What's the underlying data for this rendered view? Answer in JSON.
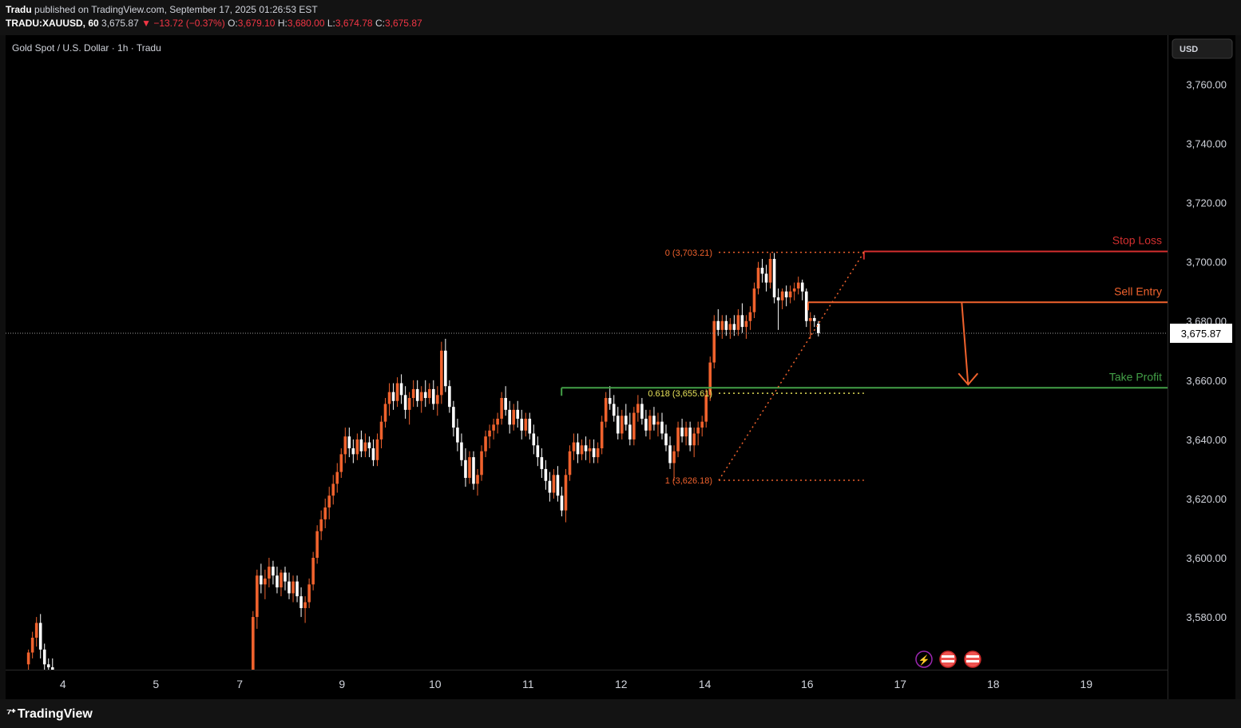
{
  "header": {
    "line1": "Tradu published on TradingView.com, September 17, 2025 01:26:53 EST",
    "publisher": "Tradu",
    "symbol": "TRADU:XAUUSD, 60",
    "last": "3,675.87",
    "change": "−13.72 (−0.37%)",
    "open_label": "O:",
    "open": "3,679.10",
    "high_label": "H:",
    "high": "3,680.00",
    "low_label": "L:",
    "low": "3,674.78",
    "close_label": "C:",
    "close": "3,675.87"
  },
  "chart_title": "Gold Spot / U.S. Dollar · 1h · Tradu",
  "currency_button": "USD",
  "footer": {
    "brand": "TradingView"
  },
  "colors": {
    "background": "#000000",
    "up_candle": "#f0622d",
    "down_candle": "#ffffff",
    "stop_loss": "#d32f2f",
    "sell_entry": "#f0622d",
    "take_profit": "#43a047",
    "fib": "#f0622d",
    "fib_618": "#e8e35a"
  },
  "chart_data": {
    "type": "candlestick",
    "title": "Gold Spot / U.S. Dollar · 1h · Tradu",
    "y_axis": {
      "ticks": [
        3580,
        3600,
        3620,
        3640,
        3660,
        3680,
        3700,
        3720,
        3740,
        3760
      ],
      "tick_labels": [
        "3,580.00",
        "3,600.00",
        "3,620.00",
        "3,640.00",
        "3,660.00",
        "3,680.00",
        "3,700.00",
        "3,720.00",
        "3,740.00",
        "3,760.00"
      ],
      "range": [
        3562.2,
        3776.6
      ]
    },
    "x_axis": {
      "tick_labels": [
        "4",
        "5",
        "7",
        "9",
        "10",
        "11",
        "12",
        "14",
        "16",
        "17",
        "18",
        "19"
      ],
      "tick_positions": [
        3.5,
        4.5,
        5.4,
        6.5,
        7.5,
        8.5,
        9.5,
        10.4,
        11.5,
        12.5,
        13.5,
        14.5
      ]
    },
    "current_price": {
      "value": 3675.87,
      "label": "3,675.87"
    },
    "levels": [
      {
        "name": "Stop Loss",
        "value": 3703.51,
        "label": "3,703.51",
        "from_x": 12.11
      },
      {
        "name": "Sell Entry",
        "value": 3686.33,
        "label": "3,686.33",
        "from_x": 11.51
      },
      {
        "name": "Take Profit",
        "value": 3657.45,
        "label": "3,657.45",
        "from_x": 8.86
      }
    ],
    "fibonacci": {
      "x_start": 10.55,
      "x_end": 12.11,
      "levels": [
        {
          "ratio": "0",
          "value": 3703.21,
          "label": "0 (3,703.21)"
        },
        {
          "ratio": "0.618",
          "value": 3655.61,
          "label": "0.618 (3,655.61)"
        },
        {
          "ratio": "1",
          "value": 3626.18,
          "label": "1 (3,626.18)"
        }
      ]
    },
    "projection_arrow": {
      "x": 13.23,
      "from": 3686.33,
      "to": 3657.45
    },
    "candles_x_start": 3.13,
    "candles_x_step": 0.0431,
    "candles": [
      [
        3564,
        3569,
        3561,
        3568
      ],
      [
        3568,
        3575,
        3566,
        3573
      ],
      [
        3573,
        3580,
        3570,
        3578
      ],
      [
        3578,
        3581,
        3566,
        3569
      ],
      [
        3569,
        3571,
        3561,
        3564
      ],
      [
        3564,
        3566,
        3559,
        3563
      ],
      [
        3563,
        3566,
        3556,
        3558
      ],
      [
        3558,
        3560,
        3550,
        3552
      ],
      [
        3552,
        3555,
        3548,
        3553
      ],
      [
        3553,
        3556,
        3550,
        3551
      ],
      [
        3551,
        3554,
        3548,
        3553
      ],
      [
        3553,
        3556,
        3550,
        3552
      ],
      [
        3552,
        3555,
        3549,
        3554
      ],
      [
        3554,
        3557,
        3551,
        3553
      ],
      [
        3553,
        3556,
        3550,
        3555
      ],
      [
        3555,
        3557,
        3552,
        3554
      ],
      [
        3554,
        3556,
        3551,
        3553
      ],
      [
        3553,
        3556,
        3550,
        3555
      ],
      [
        3555,
        3557,
        3552,
        3554
      ],
      [
        3554,
        3557,
        3551,
        3556
      ],
      [
        3556,
        3558,
        3553,
        3555
      ],
      [
        3555,
        3557,
        3552,
        3554
      ],
      [
        3554,
        3556,
        3551,
        3553
      ],
      [
        3553,
        3556,
        3550,
        3555
      ],
      [
        3555,
        3557,
        3552,
        3554
      ],
      [
        3554,
        3557,
        3551,
        3556
      ],
      [
        3556,
        3558,
        3553,
        3555
      ],
      [
        3555,
        3558,
        3552,
        3557
      ],
      [
        3557,
        3559,
        3554,
        3556
      ],
      [
        3556,
        3558,
        3553,
        3555
      ],
      [
        3555,
        3557,
        3552,
        3554
      ],
      [
        3554,
        3556,
        3551,
        3553
      ],
      [
        3553,
        3556,
        3550,
        3555
      ],
      [
        3555,
        3557,
        3552,
        3554
      ],
      [
        3554,
        3557,
        3551,
        3556
      ],
      [
        3556,
        3558,
        3553,
        3555
      ],
      [
        3555,
        3557,
        3552,
        3554
      ],
      [
        3554,
        3556,
        3551,
        3553
      ],
      [
        3553,
        3555,
        3550,
        3554
      ],
      [
        3554,
        3556,
        3551,
        3553
      ],
      [
        3553,
        3556,
        3550,
        3555
      ],
      [
        3555,
        3557,
        3552,
        3554
      ],
      [
        3554,
        3556,
        3551,
        3553
      ],
      [
        3553,
        3556,
        3550,
        3555
      ],
      [
        3555,
        3557,
        3552,
        3554
      ],
      [
        3554,
        3557,
        3551,
        3556
      ],
      [
        3556,
        3558,
        3553,
        3555
      ],
      [
        3555,
        3557,
        3552,
        3554
      ],
      [
        3554,
        3556,
        3551,
        3553
      ],
      [
        3553,
        3556,
        3550,
        3555
      ],
      [
        3555,
        3557,
        3552,
        3554
      ],
      [
        3554,
        3556,
        3551,
        3553
      ],
      [
        3553,
        3556,
        3550,
        3555
      ],
      [
        3555,
        3557,
        3552,
        3554
      ],
      [
        3554,
        3556,
        3551,
        3553
      ],
      [
        3553,
        3562,
        3550,
        3561
      ],
      [
        3561,
        3582,
        3560,
        3580
      ],
      [
        3580,
        3596,
        3576,
        3594
      ],
      [
        3594,
        3598,
        3588,
        3591
      ],
      [
        3591,
        3596,
        3586,
        3593
      ],
      [
        3593,
        3600,
        3590,
        3597
      ],
      [
        3597,
        3599,
        3591,
        3594
      ],
      [
        3594,
        3597,
        3588,
        3590
      ],
      [
        3590,
        3596,
        3587,
        3595
      ],
      [
        3595,
        3597,
        3589,
        3592
      ],
      [
        3592,
        3595,
        3586,
        3588
      ],
      [
        3588,
        3594,
        3585,
        3592
      ],
      [
        3592,
        3594,
        3585,
        3587
      ],
      [
        3587,
        3590,
        3580,
        3583
      ],
      [
        3583,
        3587,
        3578,
        3585
      ],
      [
        3585,
        3593,
        3583,
        3591
      ],
      [
        3591,
        3602,
        3589,
        3600
      ],
      [
        3600,
        3611,
        3598,
        3609
      ],
      [
        3609,
        3616,
        3606,
        3613
      ],
      [
        3613,
        3620,
        3610,
        3617
      ],
      [
        3617,
        3624,
        3613,
        3621
      ],
      [
        3621,
        3628,
        3618,
        3625
      ],
      [
        3625,
        3632,
        3622,
        3629
      ],
      [
        3629,
        3637,
        3627,
        3635
      ],
      [
        3635,
        3644,
        3632,
        3641
      ],
      [
        3641,
        3644,
        3634,
        3637
      ],
      [
        3637,
        3640,
        3632,
        3635
      ],
      [
        3635,
        3642,
        3633,
        3640
      ],
      [
        3640,
        3643,
        3634,
        3636
      ],
      [
        3636,
        3642,
        3634,
        3639
      ],
      [
        3639,
        3641,
        3634,
        3637
      ],
      [
        3637,
        3640,
        3631,
        3633
      ],
      [
        3633,
        3642,
        3631,
        3640
      ],
      [
        3640,
        3648,
        3637,
        3646
      ],
      [
        3646,
        3654,
        3644,
        3652
      ],
      [
        3652,
        3659,
        3648,
        3656
      ],
      [
        3656,
        3659,
        3650,
        3653
      ],
      [
        3653,
        3661,
        3651,
        3659
      ],
      [
        3659,
        3662,
        3652,
        3655
      ],
      [
        3655,
        3658,
        3647,
        3650
      ],
      [
        3650,
        3656,
        3645,
        3654
      ],
      [
        3654,
        3660,
        3651,
        3657
      ],
      [
        3657,
        3660,
        3651,
        3653
      ],
      [
        3653,
        3658,
        3649,
        3656
      ],
      [
        3656,
        3660,
        3651,
        3654
      ],
      [
        3654,
        3659,
        3652,
        3657
      ],
      [
        3657,
        3660,
        3650,
        3652
      ],
      [
        3652,
        3658,
        3648,
        3655
      ],
      [
        3655,
        3673,
        3652,
        3670
      ],
      [
        3670,
        3674,
        3656,
        3658
      ],
      [
        3658,
        3660,
        3649,
        3651
      ],
      [
        3651,
        3653,
        3641,
        3644
      ],
      [
        3644,
        3647,
        3636,
        3639
      ],
      [
        3639,
        3642,
        3631,
        3633
      ],
      [
        3633,
        3637,
        3624,
        3627
      ],
      [
        3627,
        3636,
        3625,
        3634
      ],
      [
        3634,
        3636,
        3623,
        3625
      ],
      [
        3625,
        3630,
        3621,
        3628
      ],
      [
        3628,
        3638,
        3626,
        3636
      ],
      [
        3636,
        3643,
        3634,
        3641
      ],
      [
        3641,
        3645,
        3637,
        3643
      ],
      [
        3643,
        3647,
        3640,
        3645
      ],
      [
        3645,
        3649,
        3642,
        3647
      ],
      [
        3647,
        3656,
        3645,
        3654
      ],
      [
        3654,
        3658,
        3648,
        3650
      ],
      [
        3650,
        3653,
        3642,
        3645
      ],
      [
        3645,
        3652,
        3643,
        3650
      ],
      [
        3650,
        3653,
        3644,
        3647
      ],
      [
        3647,
        3650,
        3640,
        3643
      ],
      [
        3643,
        3649,
        3641,
        3647
      ],
      [
        3647,
        3649,
        3640,
        3642
      ],
      [
        3642,
        3645,
        3635,
        3638
      ],
      [
        3638,
        3641,
        3631,
        3634
      ],
      [
        3634,
        3637,
        3627,
        3630
      ],
      [
        3630,
        3633,
        3623,
        3626
      ],
      [
        3626,
        3629,
        3619,
        3622
      ],
      [
        3622,
        3630,
        3620,
        3628
      ],
      [
        3628,
        3631,
        3619,
        3621
      ],
      [
        3621,
        3624,
        3614,
        3616
      ],
      [
        3616,
        3630,
        3612,
        3628
      ],
      [
        3628,
        3638,
        3626,
        3636
      ],
      [
        3636,
        3642,
        3633,
        3639
      ],
      [
        3639,
        3642,
        3632,
        3635
      ],
      [
        3635,
        3640,
        3633,
        3638
      ],
      [
        3638,
        3641,
        3633,
        3636
      ],
      [
        3636,
        3640,
        3632,
        3637
      ],
      [
        3637,
        3640,
        3632,
        3634
      ],
      [
        3634,
        3639,
        3632,
        3637
      ],
      [
        3637,
        3648,
        3635,
        3646
      ],
      [
        3646,
        3656,
        3644,
        3654
      ],
      [
        3654,
        3658,
        3650,
        3652
      ],
      [
        3652,
        3655,
        3646,
        3648
      ],
      [
        3648,
        3651,
        3640,
        3642
      ],
      [
        3642,
        3650,
        3640,
        3648
      ],
      [
        3648,
        3652,
        3643,
        3645
      ],
      [
        3645,
        3649,
        3638,
        3640
      ],
      [
        3640,
        3651,
        3638,
        3649
      ],
      [
        3649,
        3655,
        3646,
        3652
      ],
      [
        3652,
        3654,
        3645,
        3647
      ],
      [
        3647,
        3650,
        3641,
        3643
      ],
      [
        3643,
        3650,
        3640,
        3648
      ],
      [
        3648,
        3651,
        3643,
        3645
      ],
      [
        3645,
        3649,
        3641,
        3646
      ],
      [
        3646,
        3649,
        3640,
        3642
      ],
      [
        3642,
        3645,
        3636,
        3638
      ],
      [
        3638,
        3641,
        3630,
        3632
      ],
      [
        3632,
        3638,
        3626,
        3636
      ],
      [
        3636,
        3646,
        3634,
        3644
      ],
      [
        3644,
        3647,
        3639,
        3641
      ],
      [
        3641,
        3646,
        3638,
        3644
      ],
      [
        3644,
        3646,
        3636,
        3638
      ],
      [
        3638,
        3644,
        3634,
        3642
      ],
      [
        3642,
        3646,
        3638,
        3644
      ],
      [
        3644,
        3648,
        3641,
        3646
      ],
      [
        3646,
        3657,
        3644,
        3655
      ],
      [
        3655,
        3668,
        3653,
        3666
      ],
      [
        3666,
        3682,
        3664,
        3680
      ],
      [
        3680,
        3684,
        3675,
        3677
      ],
      [
        3677,
        3682,
        3674,
        3680
      ],
      [
        3680,
        3682,
        3675,
        3677
      ],
      [
        3677,
        3681,
        3674,
        3679
      ],
      [
        3679,
        3682,
        3675,
        3677
      ],
      [
        3677,
        3684,
        3675,
        3682
      ],
      [
        3682,
        3686,
        3676,
        3678
      ],
      [
        3678,
        3682,
        3674,
        3680
      ],
      [
        3680,
        3685,
        3677,
        3683
      ],
      [
        3683,
        3693,
        3681,
        3691
      ],
      [
        3691,
        3700,
        3689,
        3698
      ],
      [
        3698,
        3701,
        3693,
        3696
      ],
      [
        3696,
        3699,
        3690,
        3693
      ],
      [
        3693,
        3703,
        3691,
        3701
      ],
      [
        3701,
        3703,
        3686,
        3688
      ],
      [
        3688,
        3691,
        3677,
        3687
      ],
      [
        3687,
        3691,
        3684,
        3690
      ],
      [
        3690,
        3692,
        3685,
        3688
      ],
      [
        3688,
        3692,
        3686,
        3690
      ],
      [
        3690,
        3693,
        3687,
        3691
      ],
      [
        3691,
        3695,
        3689,
        3693
      ],
      [
        3693,
        3694,
        3687,
        3690
      ],
      [
        3690,
        3691,
        3678,
        3680
      ],
      [
        3680,
        3683,
        3674,
        3681
      ],
      [
        3681,
        3682,
        3678,
        3680
      ],
      [
        3679.1,
        3680,
        3674.78,
        3675.87
      ]
    ]
  }
}
